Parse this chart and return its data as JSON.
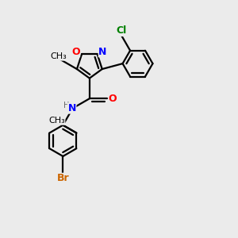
{
  "background_color": "#ebebeb",
  "bond_color": "black",
  "atom_colors": {
    "O": "#ff0000",
    "N": "#0000ff",
    "Cl": "#008000",
    "Br": "#cc6600",
    "C": "black",
    "H": "#666666"
  },
  "figsize": [
    3.0,
    3.0
  ],
  "dpi": 100
}
